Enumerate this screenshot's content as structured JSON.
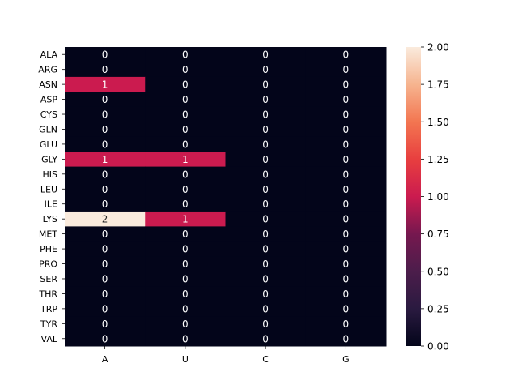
{
  "chart_data": {
    "type": "heatmap",
    "title": "",
    "xlabel": "",
    "ylabel": "",
    "x_categories": [
      "A",
      "U",
      "C",
      "G"
    ],
    "y_categories": [
      "ALA",
      "ARG",
      "ASN",
      "ASP",
      "CYS",
      "GLN",
      "GLU",
      "GLY",
      "HIS",
      "LEU",
      "ILE",
      "LYS",
      "MET",
      "PHE",
      "PRO",
      "SER",
      "THR",
      "TRP",
      "TYR",
      "VAL"
    ],
    "values": [
      [
        0,
        0,
        0,
        0
      ],
      [
        0,
        0,
        0,
        0
      ],
      [
        1,
        0,
        0,
        0
      ],
      [
        0,
        0,
        0,
        0
      ],
      [
        0,
        0,
        0,
        0
      ],
      [
        0,
        0,
        0,
        0
      ],
      [
        0,
        0,
        0,
        0
      ],
      [
        1,
        1,
        0,
        0
      ],
      [
        0,
        0,
        0,
        0
      ],
      [
        0,
        0,
        0,
        0
      ],
      [
        0,
        0,
        0,
        0
      ],
      [
        2,
        1,
        0,
        0
      ],
      [
        0,
        0,
        0,
        0
      ],
      [
        0,
        0,
        0,
        0
      ],
      [
        0,
        0,
        0,
        0
      ],
      [
        0,
        0,
        0,
        0
      ],
      [
        0,
        0,
        0,
        0
      ],
      [
        0,
        0,
        0,
        0
      ],
      [
        0,
        0,
        0,
        0
      ],
      [
        0,
        0,
        0,
        0
      ]
    ],
    "annotations": true,
    "colorbar": {
      "range": [
        0,
        2
      ],
      "ticks": [
        "0.00",
        "0.25",
        "0.50",
        "0.75",
        "1.00",
        "1.25",
        "1.50",
        "1.75",
        "2.00"
      ],
      "colormap": "rocket"
    }
  }
}
